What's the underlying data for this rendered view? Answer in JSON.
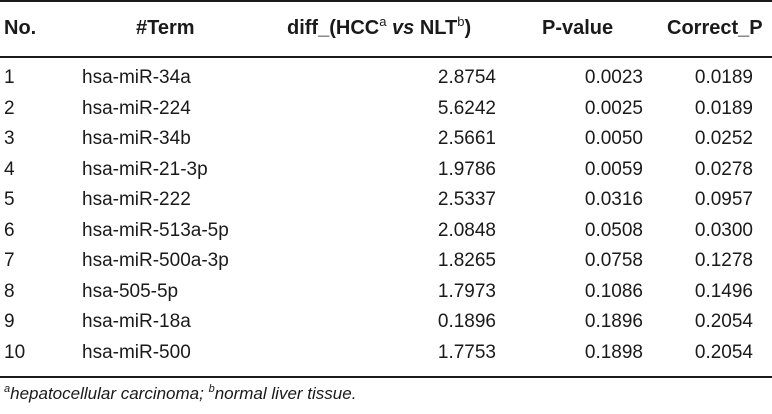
{
  "table": {
    "headers": {
      "no": "No.",
      "term": "#Term",
      "diff_prefix": "diff_(HCC",
      "diff_sup_a": "a",
      "diff_vs": "vs",
      "diff_nlt": "NLT",
      "diff_sup_b": "b",
      "diff_suffix": ")",
      "pvalue": "P-value",
      "correct_p": "Correct_P"
    },
    "rows": [
      {
        "no": "1",
        "term": "hsa-miR-34a",
        "diff": "2.8754",
        "pvalue": "0.0023",
        "correct_p": "0.0189"
      },
      {
        "no": "2",
        "term": "hsa-miR-224",
        "diff": "5.6242",
        "pvalue": "0.0025",
        "correct_p": "0.0189"
      },
      {
        "no": "3",
        "term": "hsa-miR-34b",
        "diff": "2.5661",
        "pvalue": "0.0050",
        "correct_p": "0.0252"
      },
      {
        "no": "4",
        "term": "hsa-miR-21-3p",
        "diff": "1.9786",
        "pvalue": "0.0059",
        "correct_p": "0.0278"
      },
      {
        "no": "5",
        "term": "hsa-miR-222",
        "diff": "2.5337",
        "pvalue": "0.0316",
        "correct_p": "0.0957"
      },
      {
        "no": "6",
        "term": "hsa-miR-513a-5p",
        "diff": "2.0848",
        "pvalue": "0.0508",
        "correct_p": "0.0300"
      },
      {
        "no": "7",
        "term": "hsa-miR-500a-3p",
        "diff": "1.8265",
        "pvalue": "0.0758",
        "correct_p": "0.1278"
      },
      {
        "no": "8",
        "term": "hsa-505-5p",
        "diff": "1.7973",
        "pvalue": "0.1086",
        "correct_p": "0.1496"
      },
      {
        "no": "9",
        "term": "hsa-miR-18a",
        "diff": "0.1896",
        "pvalue": "0.1896",
        "correct_p": "0.2054"
      },
      {
        "no": "10",
        "term": "hsa-miR-500",
        "diff": "1.7753",
        "pvalue": "0.1898",
        "correct_p": "0.2054"
      }
    ]
  },
  "footnote": {
    "sup_a": "a",
    "text_a": "hepatocellular carcinoma; ",
    "sup_b": "b",
    "text_b": "normal liver tissue."
  }
}
